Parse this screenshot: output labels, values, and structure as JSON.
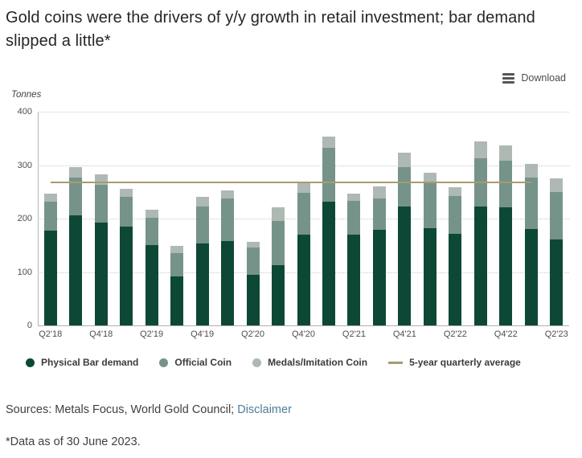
{
  "title": "Gold coins were the drivers of y/y growth in retail investment; bar demand slipped a little*",
  "toolbar": {
    "download_label": "Download"
  },
  "chart_data": {
    "type": "bar",
    "stacked": true,
    "title": "Gold coins were the drivers of y/y growth in retail investment; bar demand slipped a little*",
    "ylabel": "Tonnes",
    "xlabel": "",
    "ylim": [
      0,
      400
    ],
    "yticks": [
      0,
      100,
      200,
      300,
      400
    ],
    "grid": "dotted-horizontal",
    "legend_position": "bottom",
    "label_every_other_category": true,
    "categories": [
      "Q2'18",
      "Q3'18",
      "Q4'18",
      "Q1'19",
      "Q2'19",
      "Q3'19",
      "Q4'19",
      "Q1'20",
      "Q2'20",
      "Q3'20",
      "Q4'20",
      "Q1'21",
      "Q2'21",
      "Q3'21",
      "Q4'21",
      "Q1'22",
      "Q2'22",
      "Q3'22",
      "Q4'22",
      "Q1'23",
      "Q2'23"
    ],
    "series": [
      {
        "name": "Physical Bar demand",
        "color": "#0d4836",
        "values": [
          178,
          206,
          193,
          185,
          150,
          92,
          153,
          158,
          95,
          113,
          170,
          232,
          170,
          179,
          223,
          182,
          171,
          223,
          221,
          181,
          161
        ]
      },
      {
        "name": "Official Coin",
        "color": "#76938a",
        "values": [
          53,
          71,
          70,
          56,
          51,
          43,
          69,
          79,
          51,
          83,
          78,
          101,
          63,
          58,
          74,
          85,
          71,
          90,
          88,
          95,
          89
        ]
      },
      {
        "name": "Medals/Imitation Coin",
        "color": "#aeb9b3",
        "values": [
          16,
          19,
          19,
          15,
          16,
          14,
          19,
          15,
          11,
          25,
          20,
          20,
          14,
          23,
          27,
          19,
          17,
          32,
          28,
          26,
          25
        ]
      }
    ],
    "average_line": {
      "name": "5-year quarterly average",
      "value": 267,
      "color": "#a89b6f",
      "from_category_index": 0,
      "to_category_index": 19
    }
  },
  "footer": {
    "sources_text": "Sources: Metals Focus, World Gold Council; ",
    "disclaimer_label": "Disclaimer",
    "data_note": "*Data as of 30 June 2023."
  }
}
